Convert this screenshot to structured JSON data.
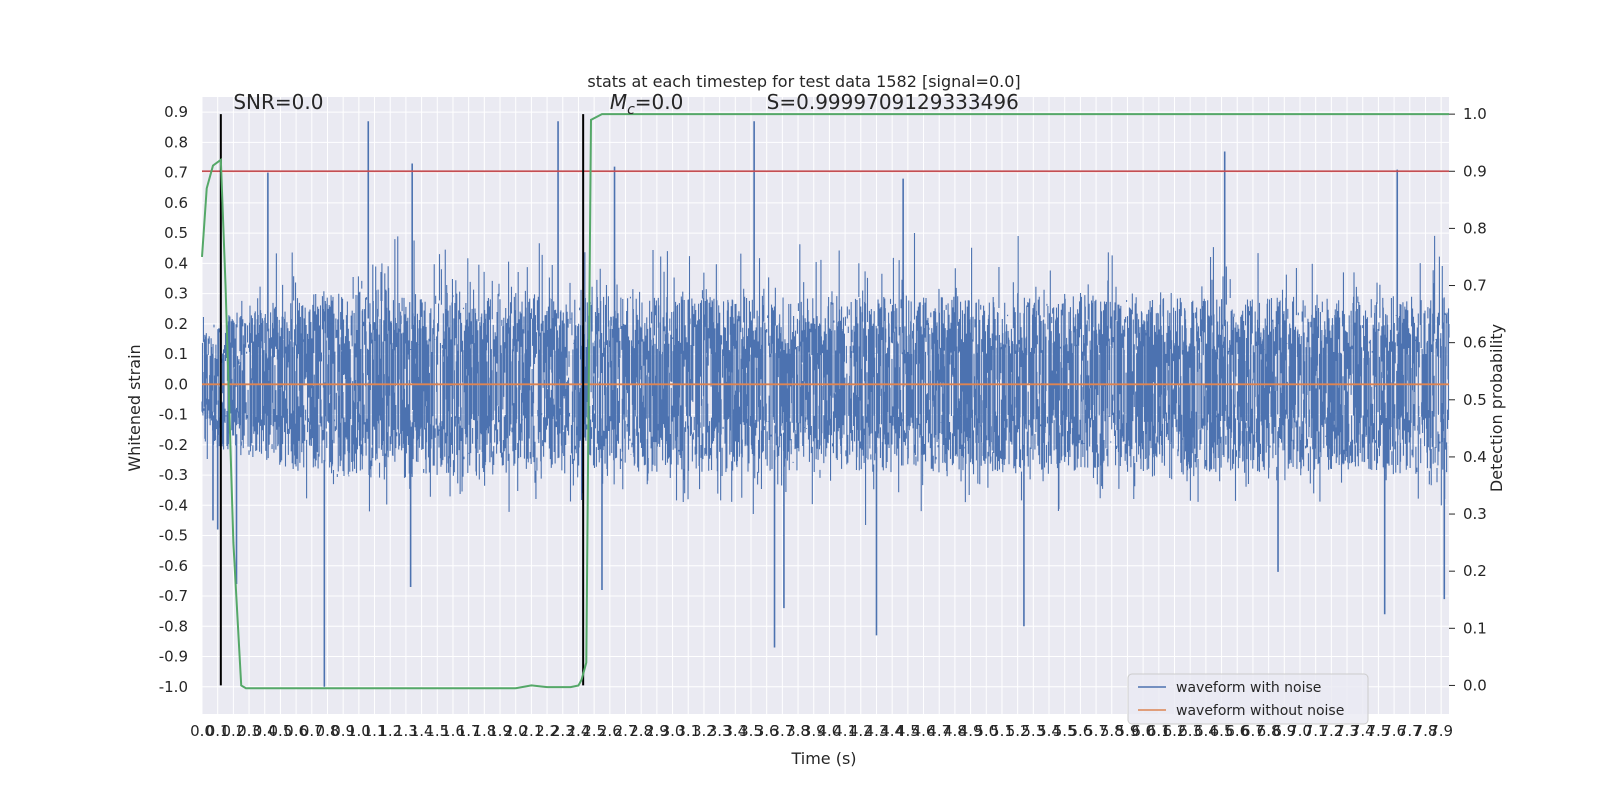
{
  "chart_data": {
    "type": "line",
    "title": "stats at each timestep for test data 1582 [signal=0.0]",
    "xlabel": "Time (s)",
    "ylabel": "Whitened strain",
    "y2label": "Detection probability",
    "xlim": [
      0.0,
      7.95
    ],
    "ylim": [
      -1.09,
      0.95
    ],
    "y2lim": [
      -0.05,
      1.03
    ],
    "x_ticks": [
      0.0,
      0.1,
      0.2,
      0.3,
      0.4,
      0.5,
      0.6,
      0.7,
      0.8,
      0.9,
      1.0,
      1.1,
      1.2,
      1.3,
      1.4,
      1.5,
      1.6,
      1.7,
      1.8,
      1.9,
      2.0,
      2.1,
      2.2,
      2.3,
      2.4,
      2.5,
      2.6,
      2.7,
      2.8,
      2.9,
      3.0,
      3.1,
      3.2,
      3.3,
      3.4,
      3.5,
      3.6,
      3.7,
      3.8,
      3.9,
      4.0,
      4.1,
      4.2,
      4.3,
      4.4,
      4.5,
      4.6,
      4.7,
      4.8,
      4.9,
      5.0,
      5.1,
      5.2,
      5.3,
      5.4,
      5.5,
      5.6,
      5.7,
      5.8,
      5.9,
      6.0,
      6.1,
      6.2,
      6.3,
      6.4,
      6.5,
      6.6,
      6.7,
      6.8,
      6.9,
      7.0,
      7.1,
      7.2,
      7.3,
      7.4,
      7.5,
      7.6,
      7.7,
      7.8,
      7.9
    ],
    "y_ticks": [
      -1.0,
      -0.9,
      -0.8,
      -0.7,
      -0.6,
      -0.5,
      -0.4,
      -0.3,
      -0.2,
      -0.1,
      0.0,
      0.1,
      0.2,
      0.3,
      0.4,
      0.5,
      0.6,
      0.7,
      0.8,
      0.9
    ],
    "y2_ticks": [
      0.0,
      0.1,
      0.2,
      0.3,
      0.4,
      0.5,
      0.6,
      0.7,
      0.8,
      0.9,
      1.0
    ],
    "grid": true,
    "legend_position": "bottom-right",
    "series": [
      {
        "name": "waveform with noise",
        "axis": "left",
        "color": "#4c72b0",
        "render": "dense-noise",
        "envelope_upper": [
          [
            0.0,
            0.35
          ],
          [
            0.6,
            0.55
          ],
          [
            1.0,
            0.6
          ],
          [
            2.5,
            0.55
          ],
          [
            8.0,
            0.55
          ]
        ],
        "envelope_lower": [
          [
            0.0,
            -0.35
          ],
          [
            0.6,
            -0.5
          ],
          [
            2.5,
            -0.5
          ],
          [
            8.0,
            -0.52
          ]
        ],
        "spikes": [
          [
            0.07,
            -0.45
          ],
          [
            0.1,
            -0.48
          ],
          [
            0.22,
            -0.66
          ],
          [
            0.42,
            0.7
          ],
          [
            0.78,
            -1.0
          ],
          [
            1.06,
            0.87
          ],
          [
            1.33,
            -0.67
          ],
          [
            1.34,
            0.73
          ],
          [
            2.27,
            0.87
          ],
          [
            2.55,
            -0.68
          ],
          [
            2.63,
            0.72
          ],
          [
            3.52,
            0.87
          ],
          [
            3.65,
            -0.87
          ],
          [
            3.71,
            -0.74
          ],
          [
            4.3,
            -0.83
          ],
          [
            4.47,
            0.68
          ],
          [
            5.24,
            -0.8
          ],
          [
            6.52,
            0.77
          ],
          [
            6.86,
            -0.62
          ],
          [
            7.54,
            -0.76
          ],
          [
            7.62,
            0.71
          ],
          [
            7.92,
            -0.71
          ]
        ]
      },
      {
        "name": "waveform without noise",
        "axis": "left",
        "color": "#dd8452",
        "x": [
          0.0,
          7.95
        ],
        "y": [
          0.0,
          0.0
        ]
      },
      {
        "name": "",
        "axis": "right",
        "color": "#55a868",
        "x": [
          0.0,
          0.03,
          0.07,
          0.12,
          0.15,
          0.2,
          0.25,
          0.28,
          0.3,
          2.0,
          2.1,
          2.2,
          2.35,
          2.4,
          2.42,
          2.45,
          2.48,
          2.55,
          2.6,
          7.95
        ],
        "y": [
          0.75,
          0.87,
          0.91,
          0.92,
          0.7,
          0.25,
          0.0,
          -0.005,
          -0.005,
          -0.005,
          0.0,
          -0.003,
          -0.003,
          0.0,
          0.01,
          0.04,
          0.99,
          1.0,
          1.0,
          1.0
        ]
      }
    ],
    "threshold": {
      "axis": "right",
      "value": 0.9,
      "color": "#c44e52"
    },
    "vlines": [
      0.12,
      2.43
    ],
    "annotations": [
      {
        "text": "SNR=0.0",
        "x": 0.2,
        "y": 0.91
      },
      {
        "text_main": "M",
        "text_sub": "c",
        "text_rest": "=0.0",
        "x": 2.6,
        "y": 0.91
      },
      {
        "text": "S=0.9999709129333496",
        "x": 3.6,
        "y": 0.91
      }
    ]
  }
}
